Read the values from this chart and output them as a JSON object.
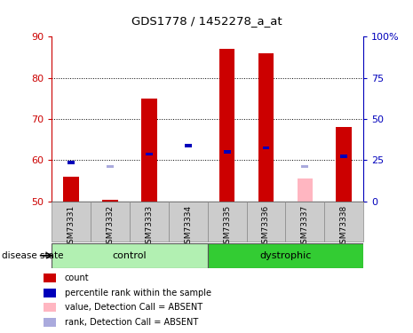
{
  "title": "GDS1778 / 1452278_a_at",
  "samples": [
    "GSM73331",
    "GSM73332",
    "GSM73333",
    "GSM73334",
    "GSM73335",
    "GSM73336",
    "GSM73337",
    "GSM73338"
  ],
  "groups": [
    "control",
    "control",
    "control",
    "control",
    "dystrophic",
    "dystrophic",
    "dystrophic",
    "dystrophic"
  ],
  "red_bars": [
    56,
    50.5,
    75,
    50,
    87,
    86,
    50,
    68
  ],
  "red_bar_absent": [
    false,
    false,
    false,
    false,
    false,
    false,
    true,
    false
  ],
  "blue_markers": [
    59.5,
    null,
    61.5,
    63.5,
    62,
    63,
    null,
    61
  ],
  "light_pink_values": [
    null,
    null,
    null,
    null,
    null,
    null,
    55.5,
    null
  ],
  "light_blue_values": [
    null,
    58.5,
    null,
    null,
    null,
    null,
    58.5,
    null
  ],
  "ylim_left": [
    50,
    90
  ],
  "ylim_right": [
    0,
    100
  ],
  "yticks_left": [
    50,
    60,
    70,
    80,
    90
  ],
  "yticks_right": [
    0,
    25,
    50,
    75,
    100
  ],
  "ytick_labels_right": [
    "0",
    "25",
    "50",
    "75",
    "100%"
  ],
  "ctrl_color": "#b2f0b2",
  "dyst_color": "#33cc33",
  "bar_color": "#cc0000",
  "absent_bar_color": "#ffb6c1",
  "blue_color": "#0000bb",
  "absent_blue_color": "#aaaadd",
  "axis_left_color": "#cc0000",
  "axis_right_color": "#0000bb",
  "bg_color": "#ffffff",
  "grid_color": "#000000",
  "sample_label_bg": "#cccccc",
  "disease_state_label": "disease state",
  "legend_items": [
    {
      "label": "count",
      "color": "#cc0000"
    },
    {
      "label": "percentile rank within the sample",
      "color": "#0000bb"
    },
    {
      "label": "value, Detection Call = ABSENT",
      "color": "#ffb6c1"
    },
    {
      "label": "rank, Detection Call = ABSENT",
      "color": "#aaaadd"
    }
  ]
}
